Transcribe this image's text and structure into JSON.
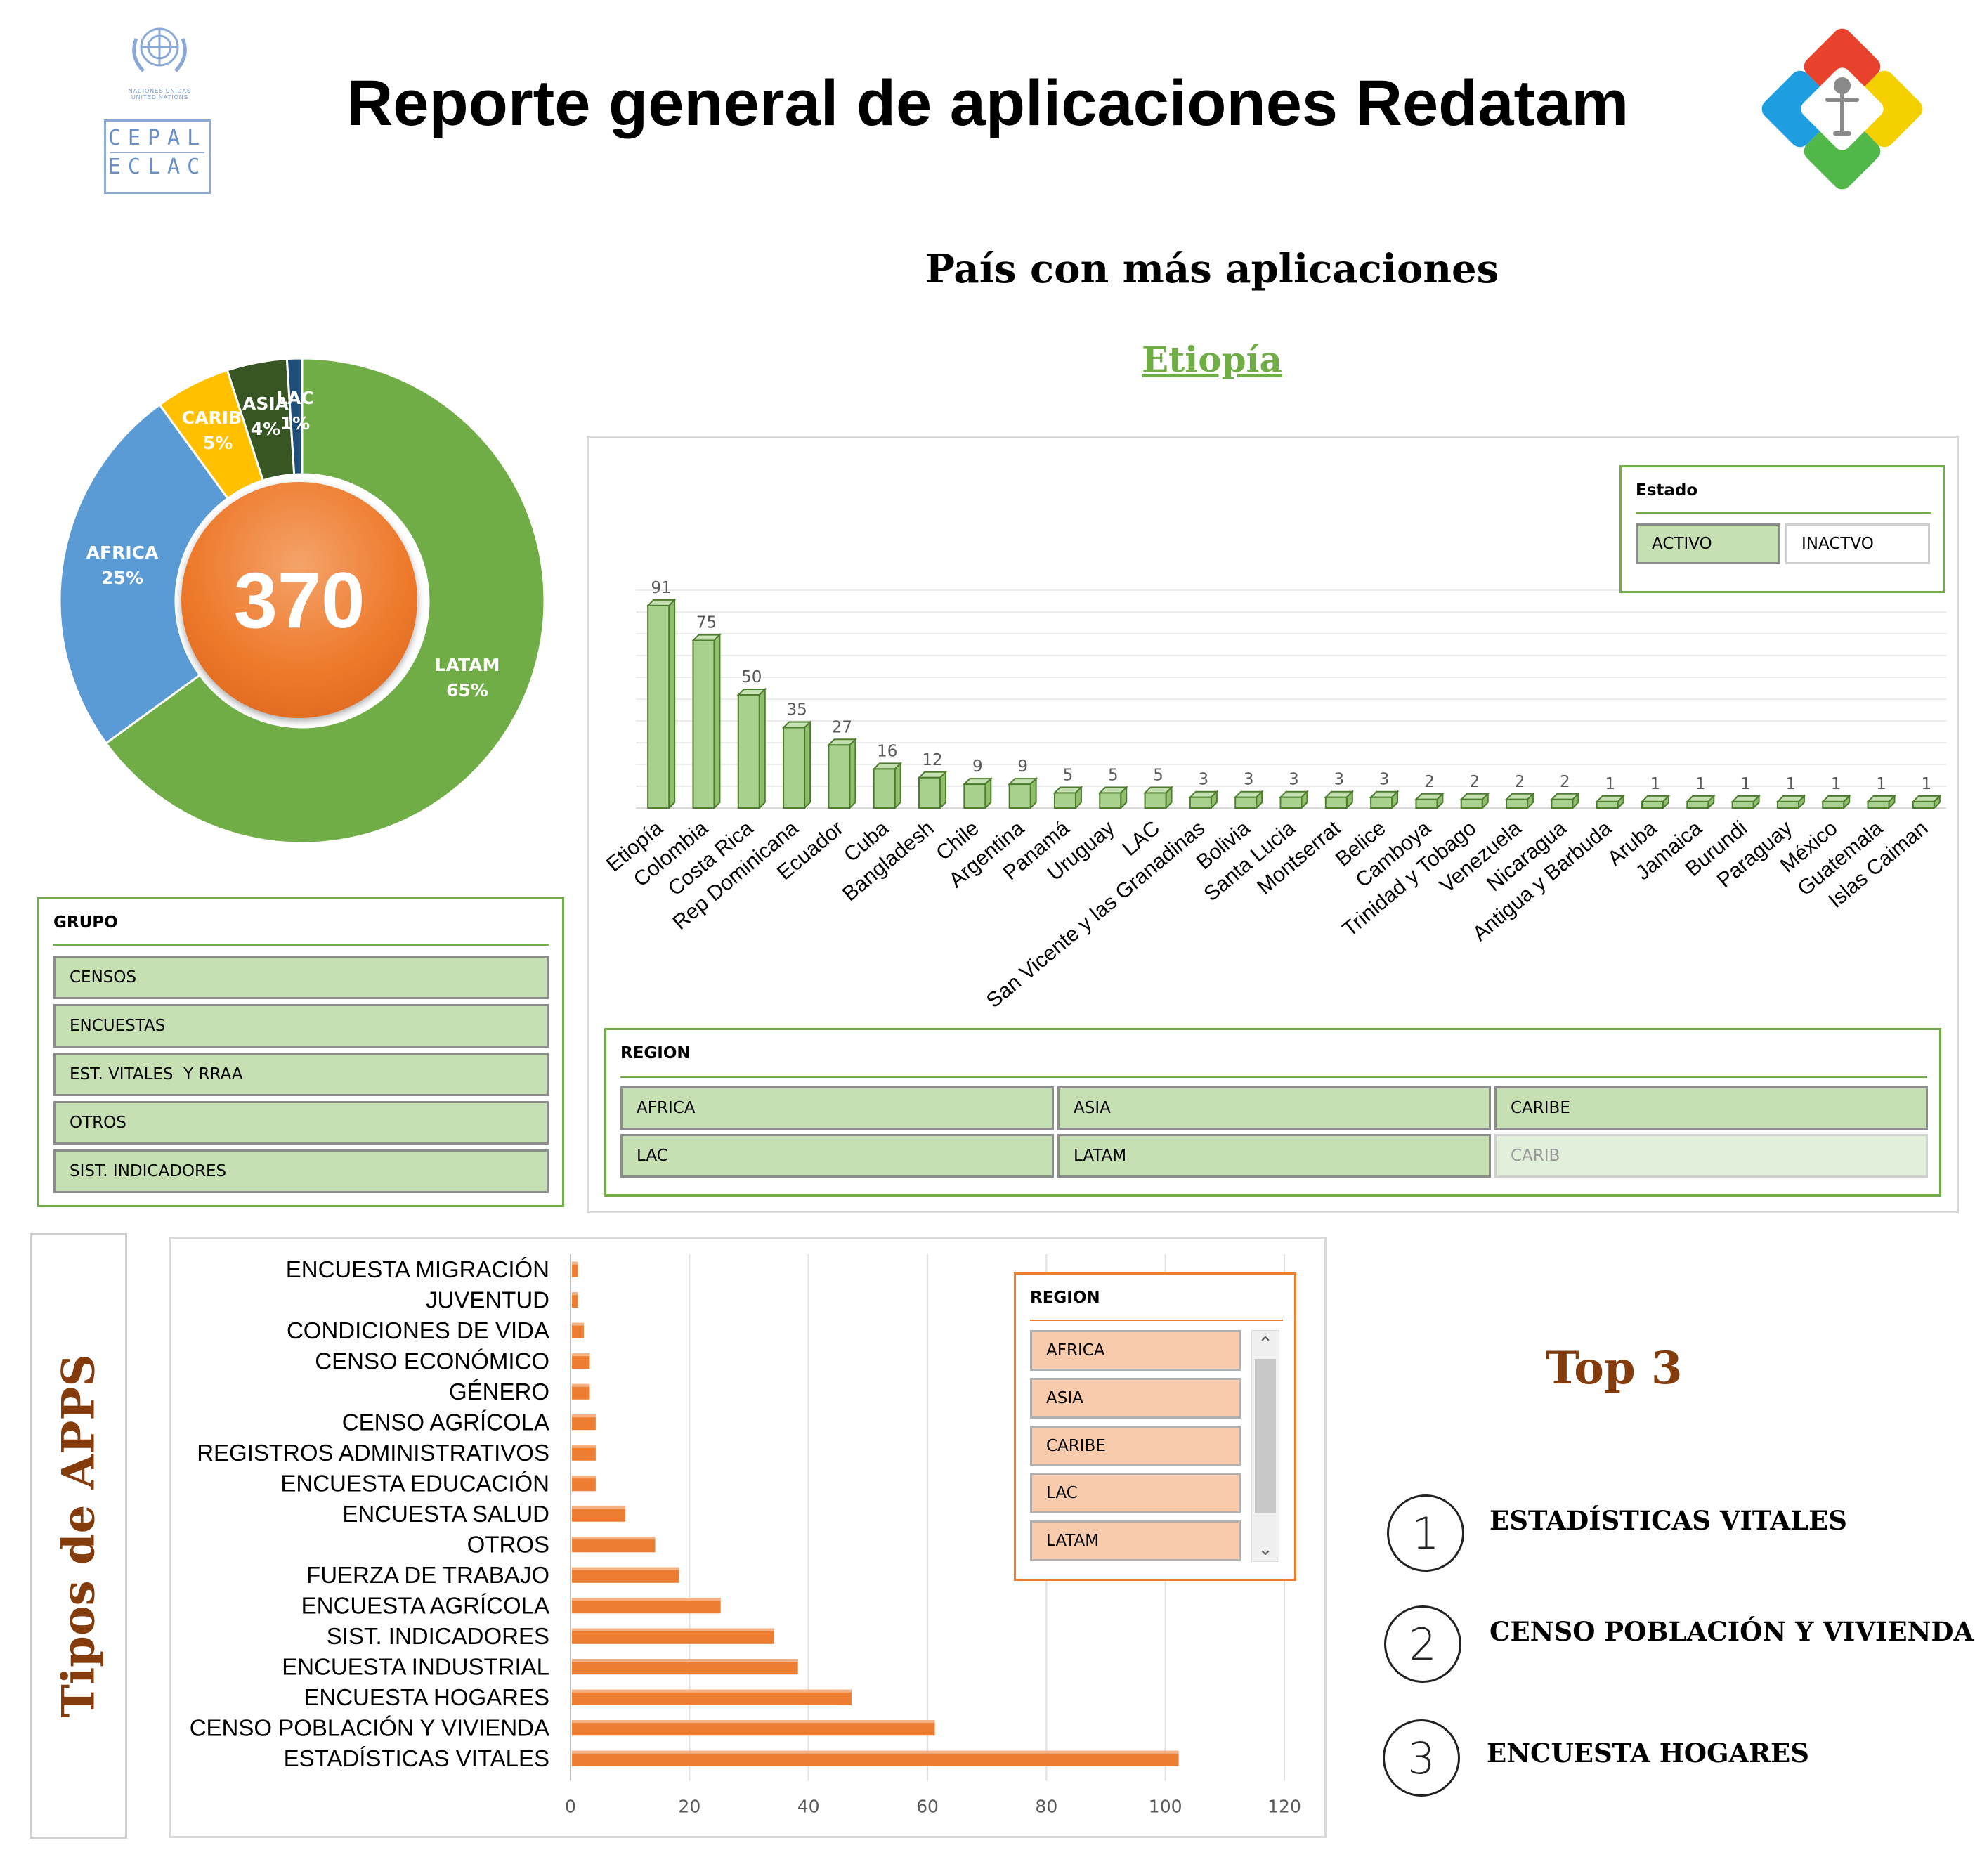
{
  "header": {
    "title": "Reporte general de aplicaciones Redatam",
    "un_logo_text": [
      "NACIONES UNIDAS",
      "UNITED NATIONS"
    ],
    "cepal_logo_text": [
      "CEPAL",
      "ECLAC"
    ]
  },
  "donut": {
    "total": "370",
    "segments": [
      {
        "label": "LATAM",
        "pct_label": "65%",
        "value": 65,
        "color": "#70ad47"
      },
      {
        "label": "AFRICA",
        "pct_label": "25%",
        "value": 25,
        "color": "#5b9bd5"
      },
      {
        "label": "CARIBE",
        "pct_label": "5%",
        "value": 5,
        "color": "#ffc000"
      },
      {
        "label": "ASIA",
        "pct_label": "4%",
        "value": 4,
        "color": "#375623"
      },
      {
        "label": "LAC",
        "pct_label": "1%",
        "value": 1,
        "color": "#1f4e79"
      }
    ]
  },
  "top_country": {
    "heading": "País con más aplicaciones",
    "name": "Etiopía"
  },
  "estado_slicer": {
    "title": "Estado",
    "options": [
      {
        "label": "ACTIVO",
        "selected": true
      },
      {
        "label": "INACTVO",
        "selected": false
      }
    ]
  },
  "grupo_slicer": {
    "title": "GRUPO",
    "options": [
      "CENSOS",
      "ENCUESTAS",
      "EST. VITALES  Y RRAA",
      "OTROS",
      "SIST. INDICADORES"
    ]
  },
  "region_slicer": {
    "title": "REGION",
    "options": [
      {
        "label": "AFRICA",
        "state": "selected"
      },
      {
        "label": "ASIA",
        "state": "selected"
      },
      {
        "label": "CARIBE",
        "state": "selected"
      },
      {
        "label": "LAC",
        "state": "selected"
      },
      {
        "label": "LATAM",
        "state": "selected"
      },
      {
        "label": "CARIB",
        "state": "nodata"
      }
    ]
  },
  "region_slicer_2": {
    "title": "REGION",
    "options": [
      "AFRICA",
      "ASIA",
      "CARIBE",
      "LAC",
      "LATAM"
    ]
  },
  "tipos_label": "Tipos de APPS",
  "top3": {
    "heading": "Top 3",
    "items": [
      {
        "rank": "1",
        "label": "ESTADÍSTICAS VITALES"
      },
      {
        "rank": "2",
        "label": "CENSO POBLACIÓN Y VIVIENDA"
      },
      {
        "rank": "3",
        "label": "ENCUESTA HOGARES"
      }
    ]
  },
  "chart_data": [
    {
      "type": "bar",
      "title": "",
      "color": "#a9d18e",
      "categories": [
        "Etiopía",
        "Colombia",
        "Costa Rica",
        "Rep Dominicana",
        "Ecuador",
        "Cuba",
        "Bangladesh",
        "Chile",
        "Argentina",
        "Panamá",
        "Uruguay",
        "LAC",
        "San Vicente y las Granadinas",
        "Bolivia",
        "Santa Lucia",
        "Montserrat",
        "Belice",
        "Camboya",
        "Trinidad y Tobago",
        "Venezuela",
        "Nicaragua",
        "Antigua y Barbuda",
        "Aruba",
        "Jamaica",
        "Burundi",
        "Paraguay",
        "México",
        "Guatemala",
        "Islas Caiman"
      ],
      "values": [
        91,
        75,
        50,
        35,
        27,
        16,
        12,
        9,
        9,
        5,
        5,
        5,
        3,
        3,
        3,
        3,
        3,
        2,
        2,
        2,
        2,
        1,
        1,
        1,
        1,
        1,
        1,
        1,
        1
      ],
      "data_labels": true,
      "grid": true
    },
    {
      "type": "bar",
      "orientation": "horizontal",
      "title": "",
      "color": "#ed7d31",
      "categories": [
        "ENCUESTA MIGRACIÓN",
        "JUVENTUD",
        "CONDICIONES DE VIDA",
        "CENSO ECONÓMICO",
        "GÉNERO",
        "CENSO AGRÍCOLA",
        "REGISTROS ADMINISTRATIVOS",
        "ENCUESTA EDUCACIÓN",
        "ENCUESTA SALUD",
        "OTROS",
        "FUERZA DE TRABAJO",
        "ENCUESTA AGRÍCOLA",
        "SIST. INDICADORES",
        "ENCUESTA INDUSTRIAL",
        "ENCUESTA HOGARES",
        "CENSO POBLACIÓN Y VIVIENDA",
        "ESTADÍSTICAS VITALES"
      ],
      "values": [
        1,
        1,
        2,
        3,
        3,
        4,
        4,
        4,
        9,
        14,
        18,
        25,
        34,
        38,
        47,
        61,
        102
      ],
      "xlim": [
        0,
        120
      ],
      "x_ticks": [
        "0",
        "20",
        "40",
        "60",
        "80",
        "100",
        "120"
      ],
      "grid": true
    }
  ]
}
